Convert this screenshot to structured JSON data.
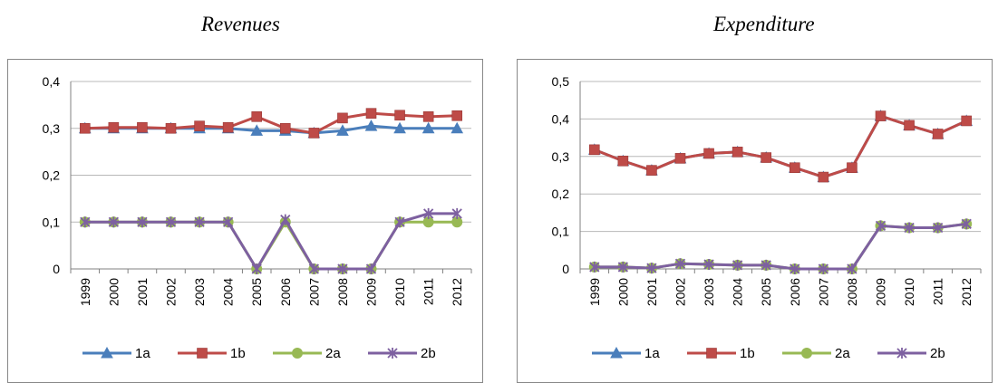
{
  "chart_data": [
    {
      "type": "line",
      "title": "Revenues",
      "categories": [
        "1999",
        "2000",
        "2001",
        "2002",
        "2003",
        "2004",
        "2005",
        "2006",
        "2007",
        "2008",
        "2009",
        "2010",
        "2011",
        "2012"
      ],
      "yticks": [
        "0",
        "0,1",
        "0,2",
        "0,3",
        "0,4"
      ],
      "ylim": [
        0,
        0.4
      ],
      "grid": "horizontal",
      "legend_position": "bottom",
      "series": [
        {
          "name": "1a",
          "color": "#4a7ebb",
          "marker": "triangle",
          "values": [
            0.3,
            0.3,
            0.3,
            0.3,
            0.3,
            0.3,
            0.295,
            0.295,
            0.29,
            0.295,
            0.305,
            0.3,
            0.3,
            0.3
          ]
        },
        {
          "name": "1b",
          "color": "#be4b48",
          "marker": "square",
          "values": [
            0.3,
            0.302,
            0.302,
            0.3,
            0.305,
            0.302,
            0.325,
            0.3,
            0.29,
            0.322,
            0.332,
            0.328,
            0.325,
            0.327
          ]
        },
        {
          "name": "2a",
          "color": "#98b954",
          "marker": "circle",
          "values": [
            0.1,
            0.1,
            0.1,
            0.1,
            0.1,
            0.1,
            0.0,
            0.1,
            0.0,
            0.0,
            0.0,
            0.1,
            0.1,
            0.1
          ]
        },
        {
          "name": "2b",
          "color": "#7d60a0",
          "marker": "star",
          "values": [
            0.1,
            0.1,
            0.1,
            0.1,
            0.1,
            0.1,
            0.0,
            0.105,
            0.0,
            0.0,
            0.0,
            0.1,
            0.118,
            0.118
          ]
        }
      ]
    },
    {
      "type": "line",
      "title": "Expenditure",
      "categories": [
        "1999",
        "2000",
        "2001",
        "2002",
        "2003",
        "2004",
        "2005",
        "2006",
        "2007",
        "2008",
        "2009",
        "2010",
        "2011",
        "2012"
      ],
      "yticks": [
        "0",
        "0,1",
        "0,2",
        "0,3",
        "0,4",
        "0,5"
      ],
      "ylim": [
        0,
        0.5
      ],
      "grid": "horizontal",
      "legend_position": "bottom",
      "series": [
        {
          "name": "1a",
          "color": "#4a7ebb",
          "marker": "triangle",
          "values": [
            0.318,
            0.288,
            0.263,
            0.295,
            0.308,
            0.312,
            0.297,
            0.27,
            0.245,
            0.27,
            0.408,
            0.383,
            0.36,
            0.395
          ]
        },
        {
          "name": "1b",
          "color": "#be4b48",
          "marker": "square",
          "values": [
            0.318,
            0.288,
            0.263,
            0.295,
            0.308,
            0.312,
            0.297,
            0.27,
            0.245,
            0.27,
            0.408,
            0.383,
            0.36,
            0.395
          ]
        },
        {
          "name": "2a",
          "color": "#98b954",
          "marker": "circle",
          "values": [
            0.005,
            0.005,
            0.002,
            0.014,
            0.012,
            0.01,
            0.01,
            0.0,
            0.0,
            0.0,
            0.115,
            0.11,
            0.11,
            0.12
          ]
        },
        {
          "name": "2b",
          "color": "#7d60a0",
          "marker": "star",
          "values": [
            0.005,
            0.005,
            0.002,
            0.014,
            0.012,
            0.01,
            0.01,
            0.0,
            0.0,
            0.0,
            0.115,
            0.11,
            0.11,
            0.12
          ]
        }
      ]
    }
  ]
}
